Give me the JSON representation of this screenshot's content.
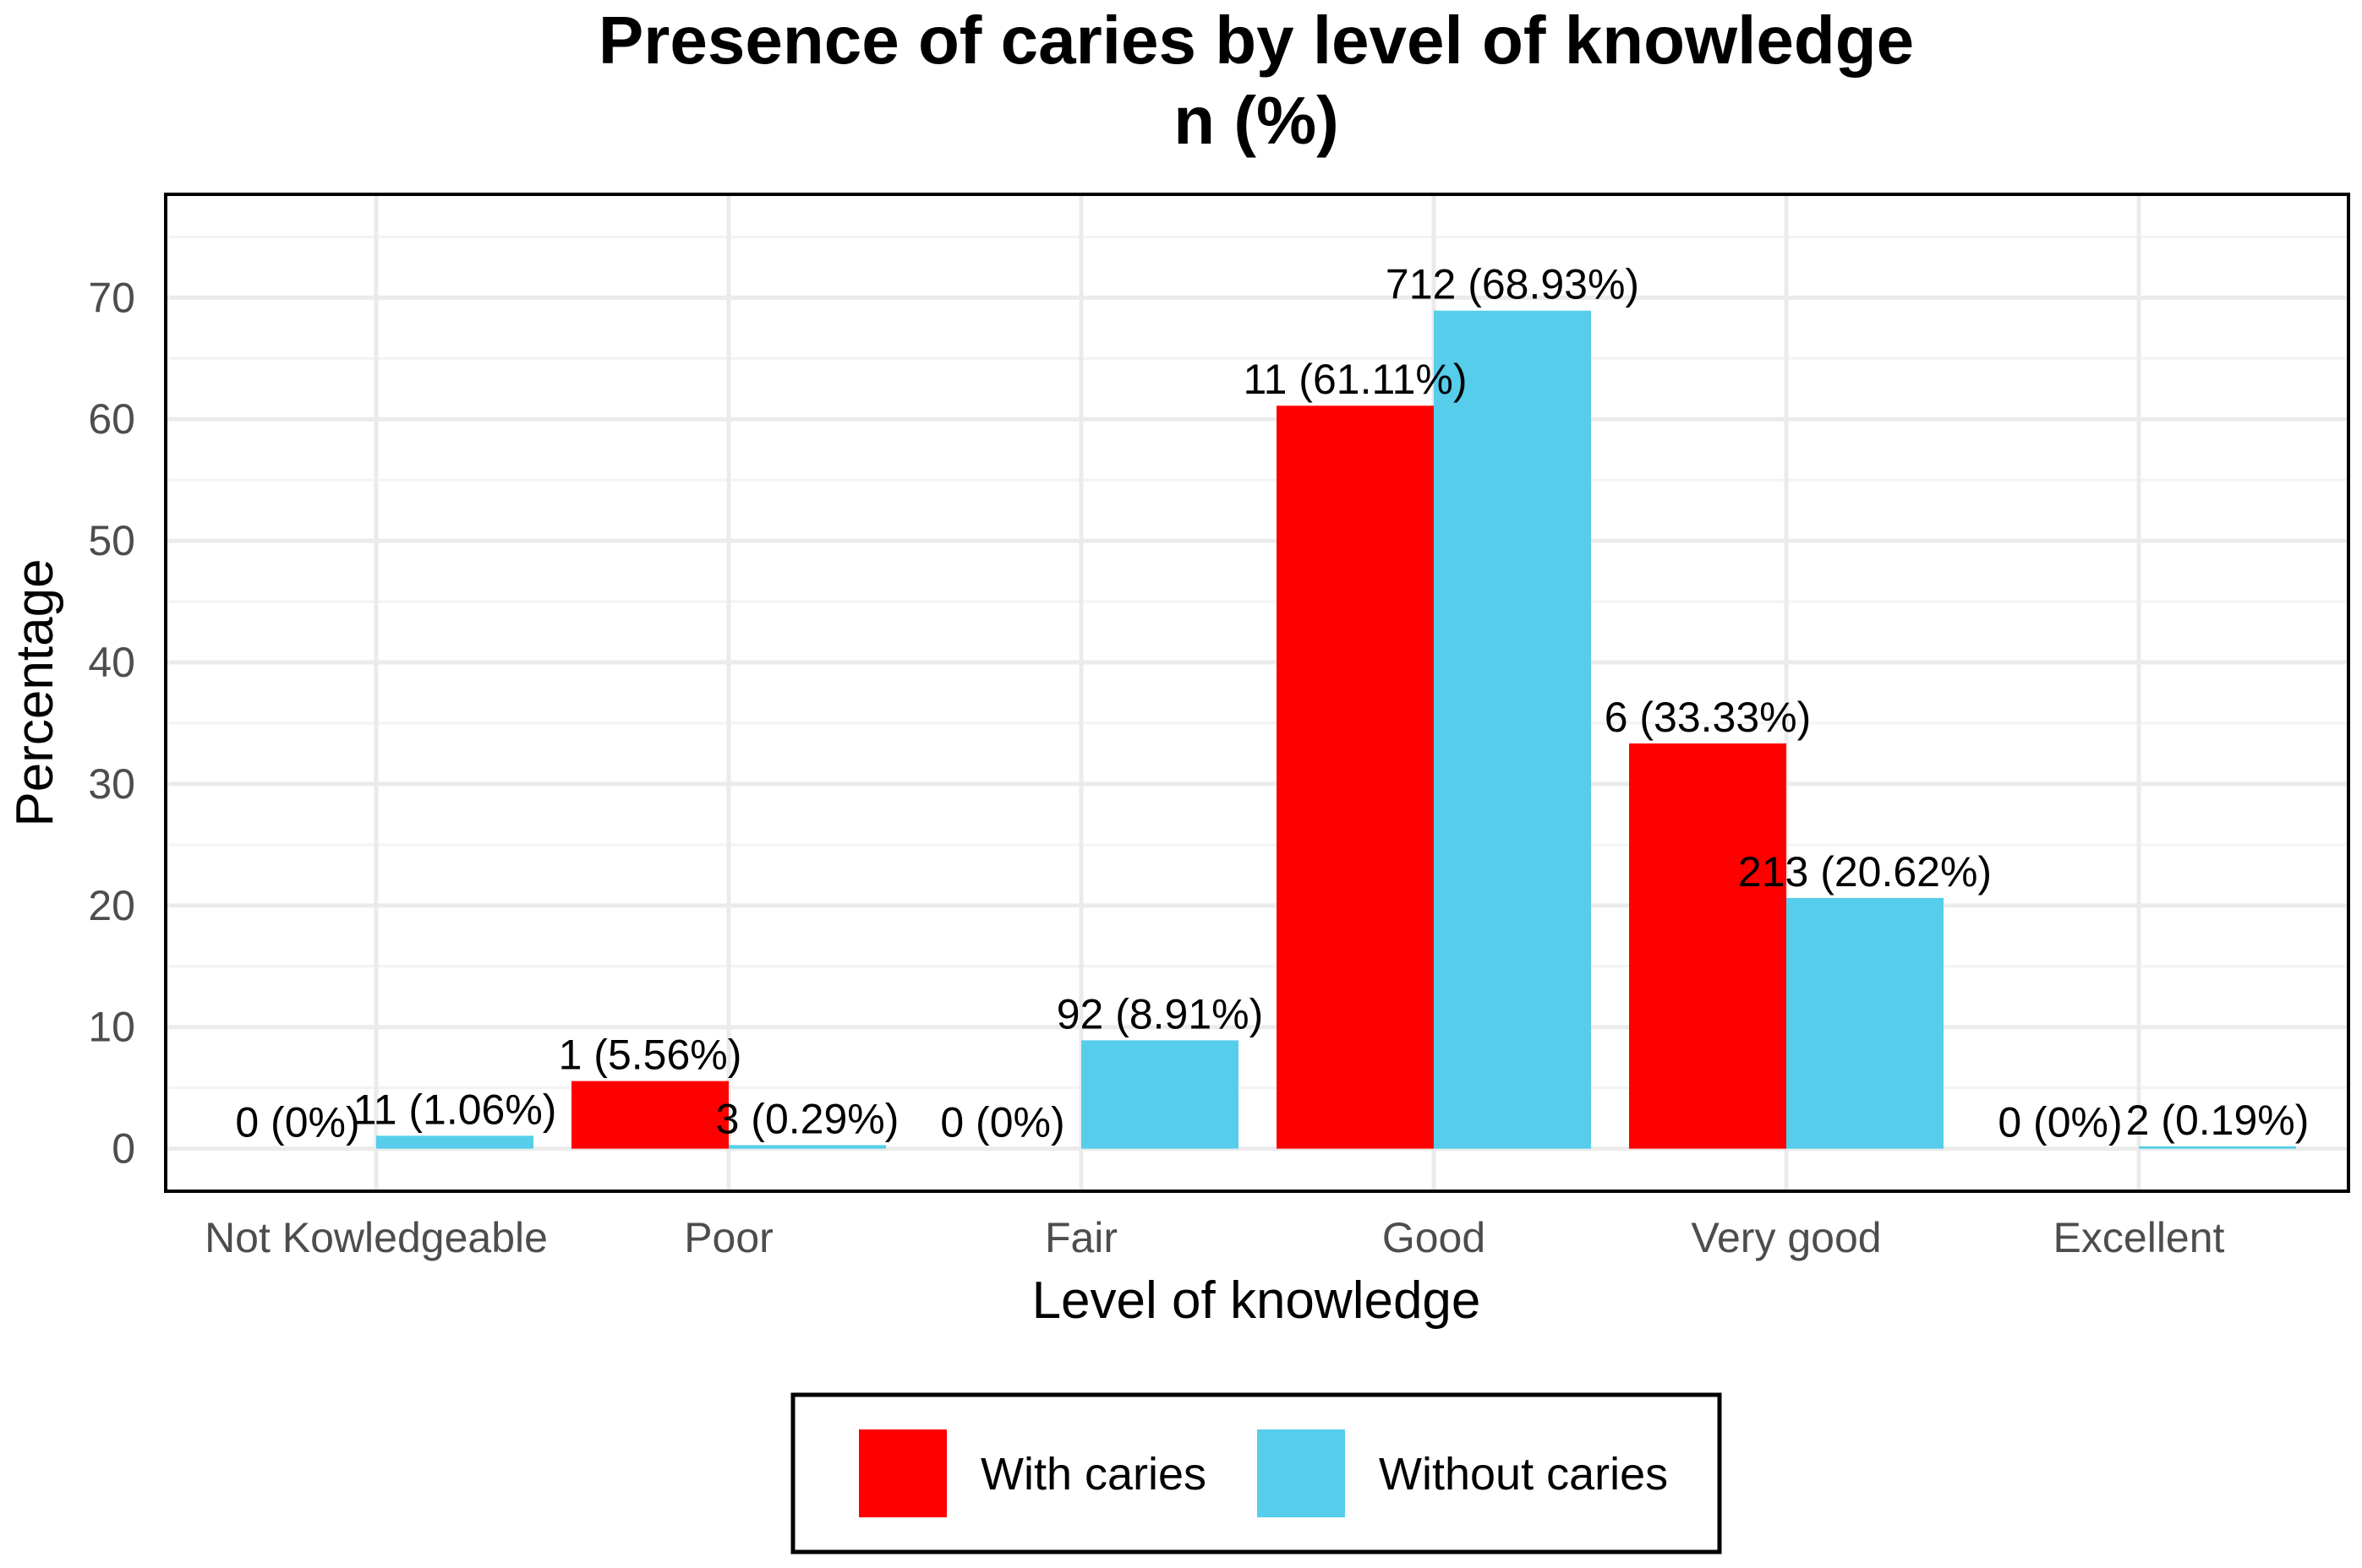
{
  "chart_data": {
    "type": "bar",
    "title": "Presence of caries by level of knowledge",
    "subtitle": "n (%)",
    "xlabel": "Level of knowledge",
    "ylabel": "Percentage",
    "categories": [
      "Not Kowledgeable",
      "Poor",
      "Fair",
      "Good",
      "Very good",
      "Excellent"
    ],
    "ylim": [
      -3.5,
      78.5
    ],
    "yticks": [
      0,
      10,
      20,
      30,
      40,
      50,
      60,
      70
    ],
    "grid": true,
    "legend_position": "bottom",
    "series": [
      {
        "name": "With caries",
        "color": "#ff0000",
        "values": [
          0,
          5.56,
          0,
          61.11,
          33.33,
          0
        ],
        "labels": [
          "0 (0%)",
          "1 (5.56%)",
          "0 (0%)",
          "11 (61.11%)",
          "6 (33.33%)",
          "0 (0%)"
        ]
      },
      {
        "name": "Without caries",
        "color": "#56cdea",
        "values": [
          1.06,
          0.29,
          8.91,
          68.93,
          20.62,
          0.19
        ],
        "labels": [
          "11 (1.06%)",
          "3 (0.29%)",
          "92 (8.91%)",
          "712 (68.93%)",
          "213 (20.62%)",
          "2 (0.19%)"
        ]
      }
    ]
  }
}
